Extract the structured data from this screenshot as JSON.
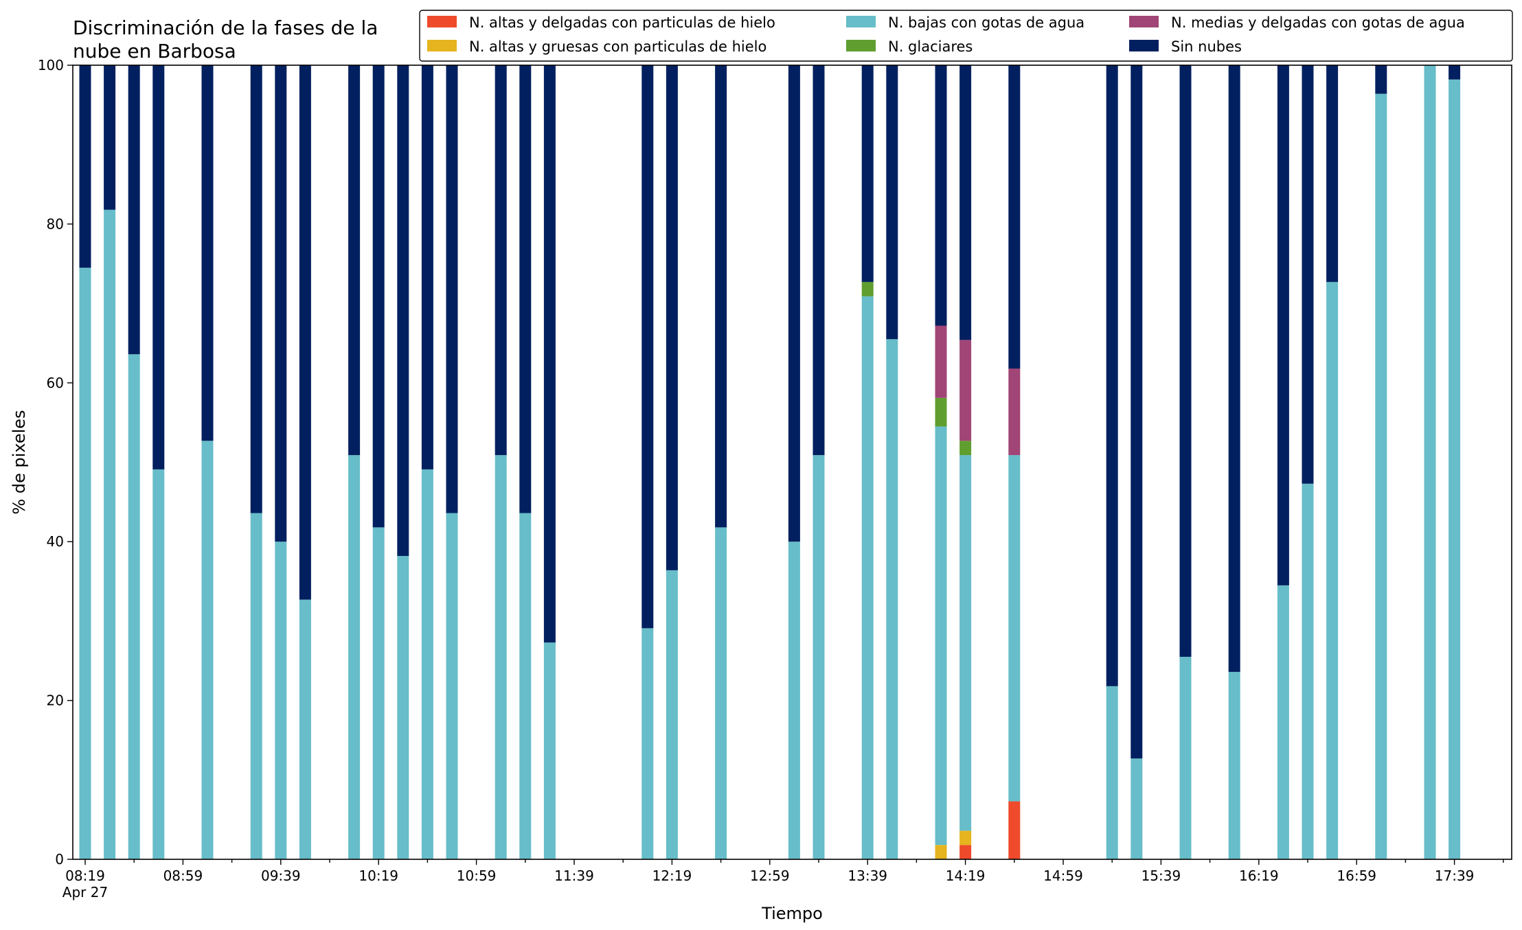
{
  "chart_data": {
    "type": "bar",
    "stacked": true,
    "title_lines": [
      "Discriminación de la fases de la",
      "nube en Barbosa"
    ],
    "xlabel": "Tiempo",
    "ylabel": "% de pixeles",
    "ylim": [
      0,
      100
    ],
    "yticks": [
      "0",
      "20",
      "40",
      "60",
      "80",
      "100"
    ],
    "x_ticks_major": [
      "08:19",
      "08:59",
      "09:39",
      "10:19",
      "10:59",
      "11:39",
      "12:19",
      "12:59",
      "13:39",
      "14:19",
      "14:59",
      "15:39",
      "16:19",
      "16:59",
      "17:39"
    ],
    "x_tick_sublabel": "Apr 27",
    "grid": false,
    "legend_position": "top",
    "slot_minutes": 10,
    "series_order": [
      "N. altas y delgadas con particulas de hielo",
      "N. altas y gruesas con particulas de hielo",
      "N. bajas con gotas de agua",
      "N. glaciares",
      "N. medias y delgadas con gotas de agua",
      "Sin nubes"
    ],
    "legend_order": [
      "N. altas y delgadas con particulas de hielo",
      "N. altas y gruesas con particulas de hielo",
      "N. bajas con gotas de agua",
      "N. glaciares",
      "N. medias y delgadas con gotas de agua",
      "Sin nubes"
    ],
    "colors": {
      "N. altas y delgadas con particulas de hielo": "#ee4a2b",
      "N. altas y gruesas con particulas de hielo": "#e5b41f",
      "N. bajas con gotas de agua": "#67bdc9",
      "N. glaciares": "#5f9e2f",
      "N. medias y delgadas con gotas de agua": "#a04576",
      "Sin nubes": "#02205f"
    },
    "bars": [
      {
        "time": "08:19",
        "values": [
          0,
          0,
          74.5,
          0,
          0,
          25.5
        ]
      },
      {
        "time": "08:29",
        "values": [
          0,
          0,
          81.8,
          0,
          0,
          18.2
        ]
      },
      {
        "time": "08:39",
        "values": [
          0,
          0,
          63.6,
          0,
          0,
          36.4
        ]
      },
      {
        "time": "08:49",
        "values": [
          0,
          0,
          49.1,
          0,
          0,
          50.9
        ]
      },
      {
        "time": "09:09",
        "values": [
          0,
          0,
          52.7,
          0,
          0,
          47.3
        ]
      },
      {
        "time": "09:29",
        "values": [
          0,
          0,
          43.6,
          0,
          0,
          56.4
        ]
      },
      {
        "time": "09:39",
        "values": [
          0,
          0,
          40.0,
          0,
          0,
          60.0
        ]
      },
      {
        "time": "09:49",
        "values": [
          0,
          0,
          32.7,
          0,
          0,
          67.3
        ]
      },
      {
        "time": "10:09",
        "values": [
          0,
          0,
          50.9,
          0,
          0,
          49.1
        ]
      },
      {
        "time": "10:19",
        "values": [
          0,
          0,
          41.8,
          0,
          0,
          58.2
        ]
      },
      {
        "time": "10:29",
        "values": [
          0,
          0,
          38.2,
          0,
          0,
          61.8
        ]
      },
      {
        "time": "10:39",
        "values": [
          0,
          0,
          49.1,
          0,
          0,
          50.9
        ]
      },
      {
        "time": "10:49",
        "values": [
          0,
          0,
          43.6,
          0,
          0,
          56.4
        ]
      },
      {
        "time": "11:09",
        "values": [
          0,
          0,
          50.9,
          0,
          0,
          49.1
        ]
      },
      {
        "time": "11:19",
        "values": [
          0,
          0,
          43.6,
          0,
          0,
          56.4
        ]
      },
      {
        "time": "11:29",
        "values": [
          0,
          0,
          27.3,
          0,
          0,
          72.7
        ]
      },
      {
        "time": "12:09",
        "values": [
          0,
          0,
          29.1,
          0,
          0,
          70.9
        ]
      },
      {
        "time": "12:19",
        "values": [
          0,
          0,
          36.4,
          0,
          0,
          63.6
        ]
      },
      {
        "time": "12:39",
        "values": [
          0,
          0,
          41.8,
          0,
          0,
          58.2
        ]
      },
      {
        "time": "13:09",
        "values": [
          0,
          0,
          40.0,
          0,
          0,
          60.0
        ]
      },
      {
        "time": "13:19",
        "values": [
          0,
          0,
          50.9,
          0,
          0,
          49.1
        ]
      },
      {
        "time": "13:39",
        "values": [
          0,
          0,
          70.9,
          1.8,
          0,
          27.3
        ]
      },
      {
        "time": "13:49",
        "values": [
          0,
          0,
          65.5,
          0,
          0,
          34.5
        ]
      },
      {
        "time": "14:09",
        "values": [
          0,
          1.8,
          52.7,
          3.6,
          9.1,
          32.8
        ]
      },
      {
        "time": "14:19",
        "values": [
          1.8,
          1.8,
          47.3,
          1.8,
          12.7,
          34.6
        ]
      },
      {
        "time": "14:39",
        "values": [
          7.3,
          0,
          43.6,
          0,
          10.9,
          38.2
        ]
      },
      {
        "time": "15:19",
        "values": [
          0,
          0,
          21.8,
          0,
          0,
          78.2
        ]
      },
      {
        "time": "15:29",
        "values": [
          0,
          0,
          12.7,
          0,
          0,
          87.3
        ]
      },
      {
        "time": "15:49",
        "values": [
          0,
          0,
          25.5,
          0,
          0,
          74.5
        ]
      },
      {
        "time": "16:09",
        "values": [
          0,
          0,
          23.6,
          0,
          0,
          76.4
        ]
      },
      {
        "time": "16:29",
        "values": [
          0,
          0,
          34.5,
          0,
          0,
          65.5
        ]
      },
      {
        "time": "16:39",
        "values": [
          0,
          0,
          47.3,
          0,
          0,
          52.7
        ]
      },
      {
        "time": "16:49",
        "values": [
          0,
          0,
          72.7,
          0,
          0,
          27.3
        ]
      },
      {
        "time": "17:09",
        "values": [
          0,
          0,
          96.4,
          0,
          0,
          3.6
        ]
      },
      {
        "time": "17:29",
        "values": [
          0,
          0,
          100,
          0,
          0,
          0
        ]
      },
      {
        "time": "17:39",
        "values": [
          0,
          0,
          98.2,
          0,
          0,
          1.8
        ]
      }
    ]
  }
}
